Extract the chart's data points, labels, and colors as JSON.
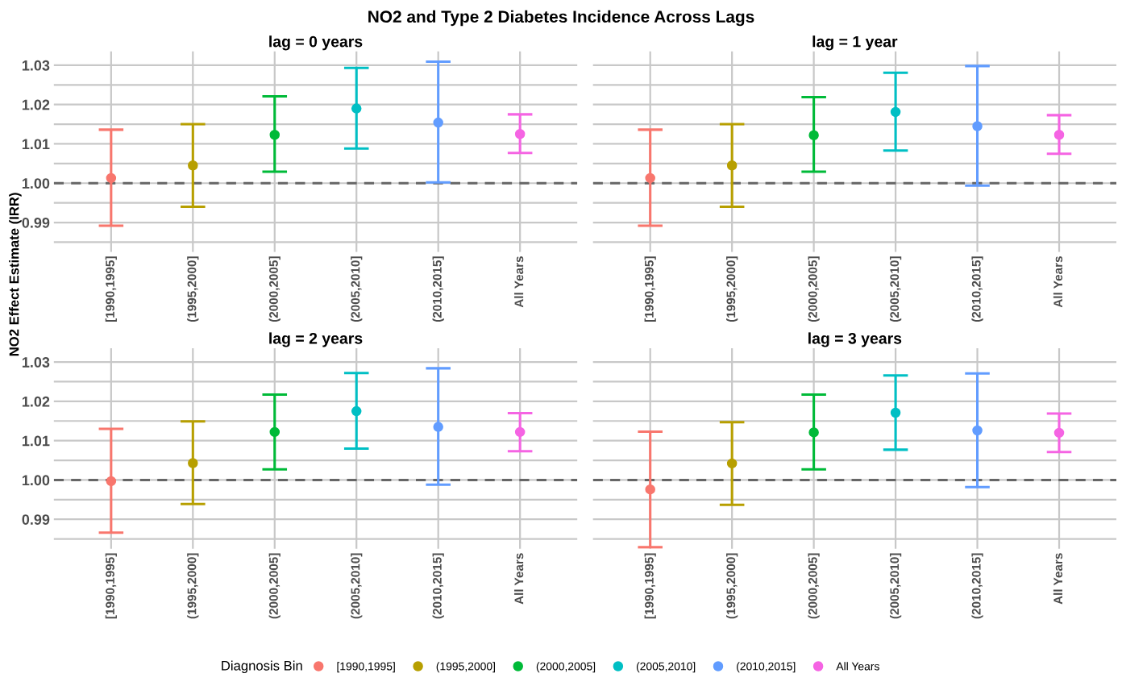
{
  "chart_data": [
    {
      "type": "scatter",
      "title": "lag = 0 years",
      "ylabel": "NO2 Effect Estimate (IRR)",
      "annotations": [
        "NO2 and Type 2 Diabetes Incidence Across Lags"
      ],
      "legend": "bottom",
      "legend_title": "Diagnosis Bin",
      "grid": true,
      "marker": "circle",
      "categories": [
        "[1990,1995]",
        "(1995,2000]",
        "(2000,2005]",
        "(2005,2010]",
        "(2010,2015]",
        "All Years"
      ],
      "series": [
        {
          "name": "[1990,1995]",
          "color": "#f8766d",
          "values": [
            1.0013,
            null,
            null,
            null,
            null,
            null
          ],
          "errors": [
            [
              0.9892,
              1.0136
            ],
            null,
            null,
            null,
            null,
            null
          ]
        },
        {
          "name": "(1995,2000]",
          "color": "#b79f00",
          "values": [
            null,
            1.0045,
            null,
            null,
            null,
            null
          ],
          "errors": [
            null,
            [
              0.994,
              1.015
            ],
            null,
            null,
            null,
            null
          ]
        },
        {
          "name": "(2000,2005]",
          "color": "#00ba38",
          "values": [
            null,
            null,
            1.0123,
            null,
            null,
            null
          ],
          "errors": [
            null,
            null,
            [
              1.0029,
              1.0221
            ],
            null,
            null,
            null
          ]
        },
        {
          "name": "(2005,2010]",
          "color": "#00bfc4",
          "values": [
            null,
            null,
            null,
            1.019,
            null,
            null
          ],
          "errors": [
            null,
            null,
            null,
            [
              1.0088,
              1.0293
            ],
            null,
            null
          ]
        },
        {
          "name": "(2010,2015]",
          "color": "#619cff",
          "values": [
            null,
            null,
            null,
            null,
            1.0154,
            null
          ],
          "errors": [
            null,
            null,
            null,
            null,
            [
              1.0002,
              1.0309
            ],
            null
          ]
        },
        {
          "name": "All Years",
          "color": "#f564e3",
          "values": [
            null,
            null,
            null,
            null,
            null,
            1.0125
          ],
          "errors": [
            null,
            null,
            null,
            null,
            null,
            [
              1.0077,
              1.0175
            ]
          ]
        }
      ],
      "ylim": [
        0.9825,
        1.0335
      ],
      "yticks": [
        {
          "value": 0.985,
          "label": null
        },
        0.99,
        {
          "value": 0.995,
          "label": null
        },
        {
          "value": 1.0,
          "label": "1.00"
        },
        {
          "value": 1.005,
          "label": null
        },
        1.01,
        {
          "value": 1.015,
          "label": null
        },
        1.02,
        {
          "value": 1.025,
          "label": null
        },
        1.03
      ],
      "ref_lines": [
        {
          "axis": "y",
          "value": 1.0,
          "color": "#666666",
          "line_style": "dashed"
        }
      ]
    },
    {
      "type": "scatter",
      "title": "lag = 1 year",
      "grid": true,
      "marker": "circle",
      "tick_labels": "x",
      "categories": [
        "[1990,1995]",
        "(1995,2000]",
        "(2000,2005]",
        "(2005,2010]",
        "(2010,2015]",
        "All Years"
      ],
      "series": [
        {
          "color": "#f8766d",
          "values": [
            1.0013,
            null,
            null,
            null,
            null,
            null
          ],
          "errors": [
            [
              0.9892,
              1.0136
            ],
            null,
            null,
            null,
            null,
            null
          ]
        },
        {
          "color": "#b79f00",
          "values": [
            null,
            1.0045,
            null,
            null,
            null,
            null
          ],
          "errors": [
            null,
            [
              0.994,
              1.015
            ],
            null,
            null,
            null,
            null
          ]
        },
        {
          "color": "#00ba38",
          "values": [
            null,
            null,
            1.0122,
            null,
            null,
            null
          ],
          "errors": [
            null,
            null,
            [
              1.0029,
              1.0219
            ],
            null,
            null,
            null
          ]
        },
        {
          "color": "#00bfc4",
          "values": [
            null,
            null,
            null,
            1.0181,
            null,
            null
          ],
          "errors": [
            null,
            null,
            null,
            [
              1.0083,
              1.0281
            ],
            null,
            null
          ]
        },
        {
          "color": "#619cff",
          "values": [
            null,
            null,
            null,
            null,
            1.0145,
            null
          ],
          "errors": [
            null,
            null,
            null,
            null,
            [
              0.9994,
              1.0298
            ],
            null
          ]
        },
        {
          "color": "#f564e3",
          "values": [
            null,
            null,
            null,
            null,
            null,
            1.0123
          ],
          "errors": [
            null,
            null,
            null,
            null,
            null,
            [
              1.0075,
              1.0173
            ]
          ]
        }
      ],
      "ylim": [
        0.9825,
        1.0335
      ],
      "yticks": [
        0.985,
        0.99,
        0.995,
        1.0,
        1.005,
        1.01,
        1.015,
        1.02,
        1.025,
        1.03
      ],
      "ref_lines": [
        {
          "axis": "y",
          "value": 1.0,
          "color": "#666666",
          "line_style": "dashed"
        }
      ]
    },
    {
      "type": "scatter",
      "title": "lag = 2 years",
      "grid": true,
      "marker": "circle",
      "categories": [
        "[1990,1995]",
        "(1995,2000]",
        "(2000,2005]",
        "(2005,2010]",
        "(2010,2015]",
        "All Years"
      ],
      "series": [
        {
          "color": "#f8766d",
          "values": [
            0.9997,
            null,
            null,
            null,
            null,
            null
          ],
          "errors": [
            [
              0.9866,
              1.013
            ],
            null,
            null,
            null,
            null,
            null
          ]
        },
        {
          "color": "#b79f00",
          "values": [
            null,
            1.0043,
            null,
            null,
            null,
            null
          ],
          "errors": [
            null,
            [
              0.9939,
              1.0149
            ],
            null,
            null,
            null,
            null
          ]
        },
        {
          "color": "#00ba38",
          "values": [
            null,
            null,
            1.0122,
            null,
            null,
            null
          ],
          "errors": [
            null,
            null,
            [
              1.0027,
              1.0217
            ],
            null,
            null,
            null
          ]
        },
        {
          "color": "#00bfc4",
          "values": [
            null,
            null,
            null,
            1.0175,
            null,
            null
          ],
          "errors": [
            null,
            null,
            null,
            [
              1.008,
              1.0272
            ],
            null,
            null
          ]
        },
        {
          "color": "#619cff",
          "values": [
            null,
            null,
            null,
            null,
            1.0135,
            null
          ],
          "errors": [
            null,
            null,
            null,
            null,
            [
              0.9988,
              1.0284
            ],
            null
          ]
        },
        {
          "color": "#f564e3",
          "values": [
            null,
            null,
            null,
            null,
            null,
            1.0122
          ],
          "errors": [
            null,
            null,
            null,
            null,
            null,
            [
              1.0073,
              1.017
            ]
          ]
        }
      ],
      "ylim": [
        0.9825,
        1.0335
      ],
      "yticks": [
        {
          "value": 0.985,
          "label": null
        },
        0.99,
        {
          "value": 0.995,
          "label": null
        },
        {
          "value": 1.0,
          "label": "1.00"
        },
        {
          "value": 1.005,
          "label": null
        },
        1.01,
        {
          "value": 1.015,
          "label": null
        },
        1.02,
        {
          "value": 1.025,
          "label": null
        },
        1.03
      ],
      "ref_lines": [
        {
          "axis": "y",
          "value": 1.0,
          "color": "#666666",
          "line_style": "dashed"
        }
      ]
    },
    {
      "type": "scatter",
      "title": "lag = 3 years",
      "grid": true,
      "marker": "circle",
      "tick_labels": "x",
      "categories": [
        "[1990,1995]",
        "(1995,2000]",
        "(2000,2005]",
        "(2005,2010]",
        "(2010,2015]",
        "All Years"
      ],
      "series": [
        {
          "color": "#f8766d",
          "values": [
            0.9976,
            null,
            null,
            null,
            null,
            null
          ],
          "errors": [
            [
              0.9829,
              1.0123
            ],
            null,
            null,
            null,
            null,
            null
          ]
        },
        {
          "color": "#b79f00",
          "values": [
            null,
            1.0042,
            null,
            null,
            null,
            null
          ],
          "errors": [
            null,
            [
              0.9937,
              1.0147
            ],
            null,
            null,
            null,
            null
          ]
        },
        {
          "color": "#00ba38",
          "values": [
            null,
            null,
            1.0121,
            null,
            null,
            null
          ],
          "errors": [
            null,
            null,
            [
              1.0027,
              1.0217
            ],
            null,
            null,
            null
          ]
        },
        {
          "color": "#00bfc4",
          "values": [
            null,
            null,
            null,
            1.0171,
            null,
            null
          ],
          "errors": [
            null,
            null,
            null,
            [
              1.0077,
              1.0266
            ],
            null,
            null
          ]
        },
        {
          "color": "#619cff",
          "values": [
            null,
            null,
            null,
            null,
            1.0126,
            null
          ],
          "errors": [
            null,
            null,
            null,
            null,
            [
              0.9982,
              1.0271
            ],
            null
          ]
        },
        {
          "color": "#f564e3",
          "values": [
            null,
            null,
            null,
            null,
            null,
            1.012
          ],
          "errors": [
            null,
            null,
            null,
            null,
            null,
            [
              1.0071,
              1.0169
            ]
          ]
        }
      ],
      "ylim": [
        0.9825,
        1.0335
      ],
      "yticks": [
        0.985,
        0.99,
        0.995,
        1.0,
        1.005,
        1.01,
        1.015,
        1.02,
        1.025,
        1.03
      ],
      "ref_lines": [
        {
          "axis": "y",
          "value": 1.0,
          "color": "#666666",
          "line_style": "dashed"
        }
      ]
    }
  ]
}
